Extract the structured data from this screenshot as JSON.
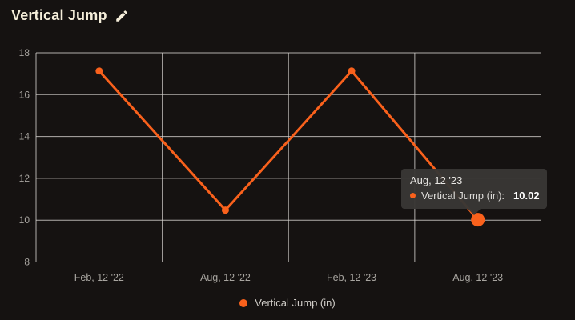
{
  "header": {
    "title": "Vertical Jump"
  },
  "chart_data": {
    "type": "line",
    "title": "Vertical Jump",
    "categories": [
      "Feb, 12 '22",
      "Aug, 12 '22",
      "Feb, 12 '23",
      "Aug, 12 '23"
    ],
    "series": [
      {
        "name": "Vertical Jump (in)",
        "color": "#f9611c",
        "values": [
          17.13,
          10.48,
          17.13,
          10.02
        ]
      }
    ],
    "ylim": [
      8,
      18
    ],
    "ytick_step": 2,
    "yticks": [
      8,
      10,
      12,
      14,
      16,
      18
    ],
    "grid": true,
    "legend_position": "bottom",
    "hovered_point": {
      "category_index": 3,
      "category": "Aug, 12 '23",
      "value": 10.02
    }
  },
  "tooltip": {
    "title": "Aug, 12 '23",
    "series_label": "Vertical Jump (in):",
    "value": "10.02",
    "dot_color": "#f9611c"
  },
  "legend": {
    "label": "Vertical Jump (in)",
    "dot_color": "#f9611c"
  },
  "colors": {
    "background": "#151211",
    "title_text": "#f5eeda",
    "gridline": "#d8d6d2",
    "axis_label": "#a8a5a0",
    "series_orange": "#f9611c",
    "tooltip_bg": "#393735"
  }
}
